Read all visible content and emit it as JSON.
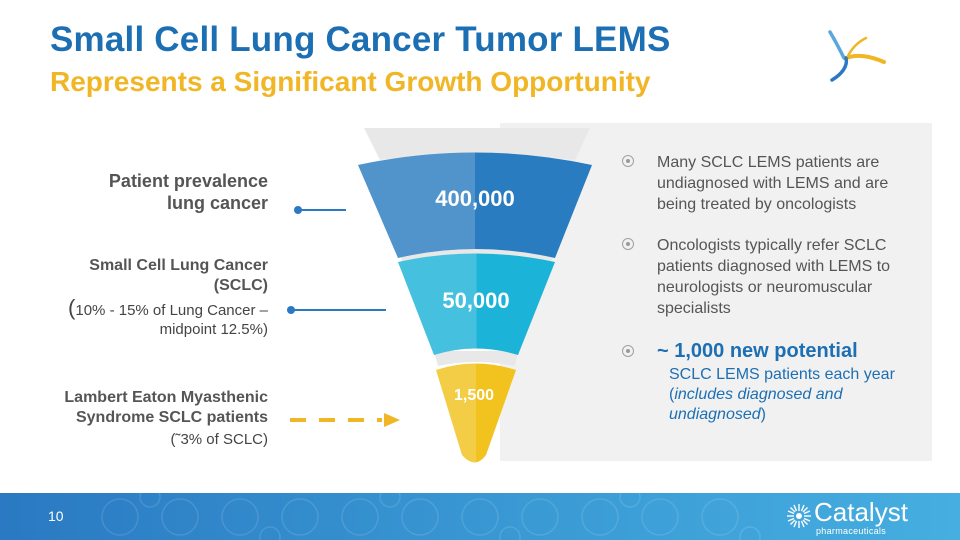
{
  "slide": {
    "title": "Small Cell Lung Cancer Tumor LEMS",
    "subtitle": "Represents a Significant Growth Opportunity",
    "page_number": "10"
  },
  "left_labels": {
    "lung_cancer": {
      "line1": "Patient prevalence",
      "line2": "lung cancer"
    },
    "sclc": {
      "line1": "Small Cell Lung Cancer",
      "line2": "(SCLC)",
      "note_paren": "(",
      "note_line1": "10% - 15% of Lung Cancer –",
      "note_line2": "midpoint 12.5%)"
    },
    "lems": {
      "line1": "Lambert Eaton Myasthenic",
      "line2": "Syndrome SCLC patients",
      "note": "(˜3% of SCLC)"
    }
  },
  "funnel": {
    "tiers": [
      {
        "label": "400,000",
        "value": 400000,
        "color": "#2a7cc0"
      },
      {
        "label": "50,000",
        "value": 50000,
        "color": "#1cb3d8"
      },
      {
        "label": "1,500",
        "value": 1500,
        "color": "#f2c21f"
      }
    ]
  },
  "bullets": [
    "Many SCLC LEMS patients are undiagnosed with LEMS and are being treated by oncologists",
    "Oncologists typically refer SCLC patients diagnosed with LEMS to neurologists or neuromuscular specialists"
  ],
  "highlight": {
    "head": "~ 1,000 new potential",
    "body_start": "SCLC LEMS patients each year (",
    "body_italic": "includes diagnosed and undiagnosed",
    "body_end": ")"
  },
  "brand": {
    "name": "Catalyst",
    "tagline": "pharmaceuticals"
  },
  "colors": {
    "title_blue": "#1d6fb3",
    "subtitle_gold": "#f0b626"
  },
  "icons": [
    "catalyst-mark-icon",
    "sunburst-logo-icon",
    "bullet-circle-icon"
  ]
}
